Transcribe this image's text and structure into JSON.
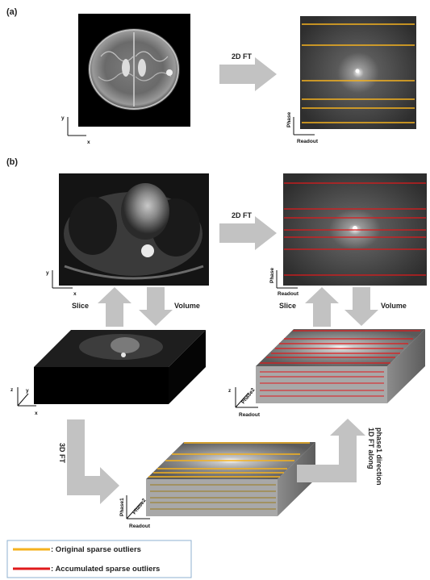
{
  "panels": {
    "a": "(a)",
    "b": "(b)"
  },
  "labels": {
    "ft2d_a": "2D FT",
    "ft2d_b": "2D FT",
    "slice_left": "Slice",
    "volume_left": "Volume",
    "slice_right": "Slice",
    "volume_right": "Volume",
    "ft3d": "3D FT",
    "ft1d_line1": "1D FT along",
    "ft1d_line2": "phase1 direction"
  },
  "axes": {
    "x": "x",
    "y": "y",
    "z": "z",
    "phase": "Phase",
    "readout": "Readout",
    "phase1": "Phase1",
    "phase2": "Phase2"
  },
  "legend": {
    "original": ": Original sparse outliers",
    "accumulated": ": Accumulated sparse outliers",
    "original_color": "#f5b21e",
    "accumulated_color": "#e0191b"
  },
  "colors": {
    "arrow": "#c2c2c2",
    "legend_border": "#8fb0d0",
    "box_side": "#7a7a7a",
    "box_front": "#a8a8a8"
  }
}
